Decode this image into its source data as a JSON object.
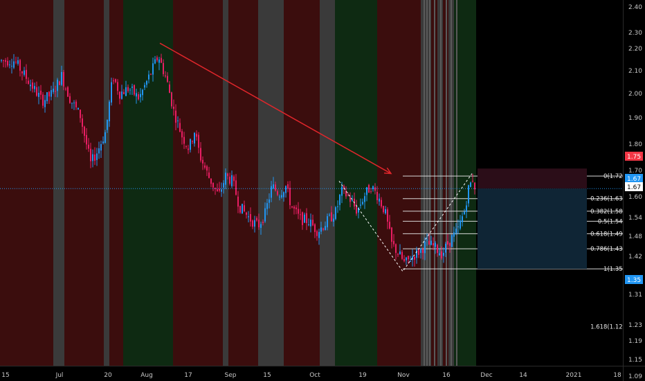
{
  "chart_data": {
    "type": "candlestick",
    "title": "",
    "x_ticks": [
      "15",
      "Jul",
      "20",
      "Aug",
      "17",
      "Sep",
      "15",
      "Oct",
      "19",
      "Nov",
      "16",
      "Dec",
      "14",
      "2021",
      "18"
    ],
    "y_ticks": [
      "2.40",
      "2.30",
      "2.20",
      "2.10",
      "2.00",
      "1.90",
      "1.80",
      "1.70",
      "1.60",
      "1.54",
      "1.48",
      "1.42",
      "1.35",
      "1.31",
      "1.23",
      "1.19",
      "1.15",
      "1.09"
    ],
    "ylim": [
      1.08,
      2.42
    ],
    "price_tags": [
      {
        "label": "1.75",
        "value": 1.75,
        "color": "#f23645"
      },
      {
        "label": "1.67",
        "value": 1.67,
        "color": "#2196f3"
      },
      {
        "label": "1.67",
        "value": 1.67,
        "color": "#ffffff"
      },
      {
        "label": "1.35",
        "value": 1.35,
        "color": "#2196f3"
      }
    ],
    "fib_levels": [
      {
        "label": "0(1.72)",
        "value": 1.72
      },
      {
        "label": "0.236(1.63)",
        "value": 1.63
      },
      {
        "label": "0.382(1.58)",
        "value": 1.58
      },
      {
        "label": "0.5(1.54)",
        "value": 1.54
      },
      {
        "label": "0.618(1.49)",
        "value": 1.49
      },
      {
        "label": "0.786(1.43)",
        "value": 1.43
      },
      {
        "label": "1(1.35)",
        "value": 1.35
      },
      {
        "label": "1.618(1.12)",
        "value": 1.12
      }
    ],
    "last_price": 1.67,
    "position": {
      "entry": 1.67,
      "target_top": 1.75,
      "stop_bottom": 1.35
    },
    "trend_arrow": {
      "from": 2.25,
      "to": 1.73
    },
    "zigzag": [
      1.7,
      1.34,
      1.73
    ],
    "colors": {
      "background": "#000000",
      "up": "#2196f3",
      "down": "#e91e63",
      "bearish_zone": "#3b0d0d",
      "bullish_zone": "#0e2a12",
      "neutral_zone": "#3a3a3a",
      "arrow": "#e0262b",
      "position_profit": "#2b0d18",
      "position_loss": "#0f2535"
    }
  }
}
